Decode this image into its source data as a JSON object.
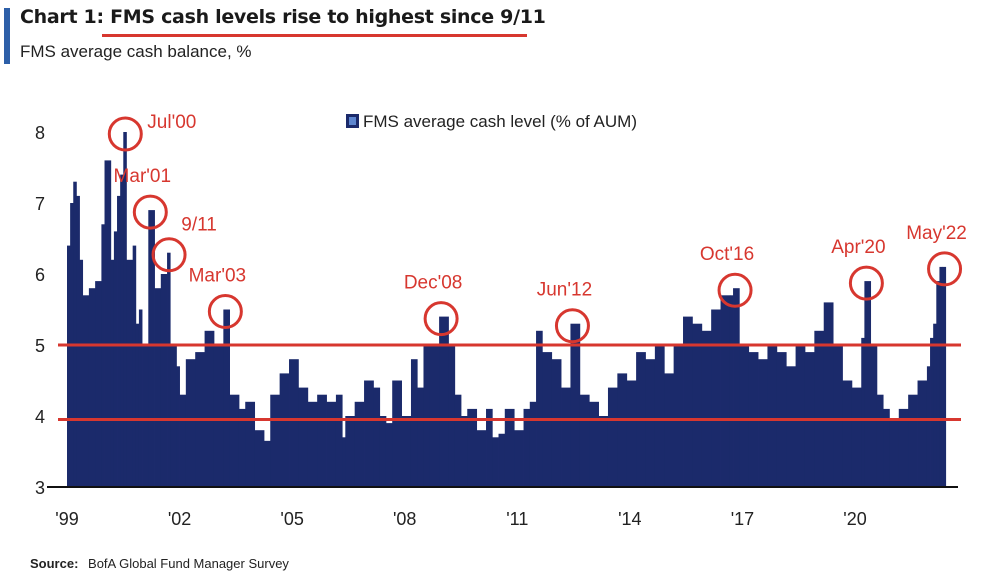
{
  "header": {
    "chart_number": "Chart 1:",
    "title": "FMS cash levels rise to highest since 9/11",
    "subtitle": "FMS average cash balance, %"
  },
  "footer": {
    "source_label": "Source:",
    "source_text": "BofA Global Fund Manager Survey"
  },
  "colors": {
    "bars": "#1b2a6b",
    "annotation": "#d7372f",
    "accent": "#2d5fa8"
  },
  "chart_data": {
    "type": "bar",
    "title": "FMS cash levels rise to highest since 9/11",
    "subtitle": "FMS average cash balance, %",
    "legend": {
      "label": "FMS average cash level (% of AUM)",
      "position": "top-center"
    },
    "ylim": [
      3,
      8.3
    ],
    "yticks": [
      3,
      4,
      5,
      6,
      7,
      8
    ],
    "x_tick_labels": [
      "'99",
      "'02",
      "'05",
      "'08",
      "'11",
      "'14",
      "'17",
      "'20"
    ],
    "x_tick_years": [
      1999,
      2002,
      2005,
      2008,
      2011,
      2014,
      2017,
      2020
    ],
    "x_range": [
      "1999-01",
      "2022-05"
    ],
    "reference_lines": [
      5.0,
      3.95
    ],
    "series": [
      {
        "points": [
          [
            "1999-01",
            6.4
          ],
          [
            "1999-02",
            7.0
          ],
          [
            "1999-03",
            7.3
          ],
          [
            "1999-04",
            7.1
          ],
          [
            "1999-05",
            6.2
          ],
          [
            "1999-06",
            5.7
          ],
          [
            "1999-08",
            5.8
          ],
          [
            "1999-10",
            5.9
          ],
          [
            "1999-12",
            6.7
          ],
          [
            "2000-01",
            7.6
          ],
          [
            "2000-03",
            6.2
          ],
          [
            "2000-04",
            6.6
          ],
          [
            "2000-05",
            7.1
          ],
          [
            "2000-06",
            7.4
          ],
          [
            "2000-07",
            8.0
          ],
          [
            "2000-08",
            6.2
          ],
          [
            "2000-10",
            6.4
          ],
          [
            "2000-11",
            5.3
          ],
          [
            "2000-12",
            5.5
          ],
          [
            "2001-01",
            5.0
          ],
          [
            "2001-03",
            6.9
          ],
          [
            "2001-05",
            5.8
          ],
          [
            "2001-07",
            6.0
          ],
          [
            "2001-09",
            6.3
          ],
          [
            "2001-10",
            5.0
          ],
          [
            "2001-12",
            4.7
          ],
          [
            "2002-01",
            4.3
          ],
          [
            "2002-03",
            4.8
          ],
          [
            "2002-06",
            4.9
          ],
          [
            "2002-09",
            5.2
          ],
          [
            "2002-12",
            5.0
          ],
          [
            "2003-03",
            5.5
          ],
          [
            "2003-05",
            4.3
          ],
          [
            "2003-08",
            4.1
          ],
          [
            "2003-10",
            4.2
          ],
          [
            "2004-01",
            3.8
          ],
          [
            "2004-04",
            3.65
          ],
          [
            "2004-06",
            4.3
          ],
          [
            "2004-09",
            4.6
          ],
          [
            "2004-12",
            4.8
          ],
          [
            "2005-03",
            4.4
          ],
          [
            "2005-06",
            4.2
          ],
          [
            "2005-09",
            4.3
          ],
          [
            "2005-12",
            4.2
          ],
          [
            "2006-03",
            4.3
          ],
          [
            "2006-05",
            3.7
          ],
          [
            "2006-06",
            4.0
          ],
          [
            "2006-09",
            4.2
          ],
          [
            "2006-12",
            4.5
          ],
          [
            "2007-03",
            4.4
          ],
          [
            "2007-05",
            4.0
          ],
          [
            "2007-07",
            3.9
          ],
          [
            "2007-09",
            4.5
          ],
          [
            "2007-12",
            4.0
          ],
          [
            "2008-03",
            4.8
          ],
          [
            "2008-05",
            4.4
          ],
          [
            "2008-07",
            5.0
          ],
          [
            "2008-09",
            5.0
          ],
          [
            "2008-12",
            5.4
          ],
          [
            "2009-03",
            5.0
          ],
          [
            "2009-05",
            4.3
          ],
          [
            "2009-07",
            4.0
          ],
          [
            "2009-09",
            4.1
          ],
          [
            "2009-12",
            3.8
          ],
          [
            "2010-03",
            4.1
          ],
          [
            "2010-05",
            3.7
          ],
          [
            "2010-07",
            3.75
          ],
          [
            "2010-09",
            4.1
          ],
          [
            "2010-12",
            3.8
          ],
          [
            "2011-03",
            4.1
          ],
          [
            "2011-05",
            4.2
          ],
          [
            "2011-07",
            5.2
          ],
          [
            "2011-09",
            4.9
          ],
          [
            "2011-12",
            4.8
          ],
          [
            "2012-03",
            4.4
          ],
          [
            "2012-06",
            5.3
          ],
          [
            "2012-09",
            4.3
          ],
          [
            "2012-12",
            4.2
          ],
          [
            "2013-03",
            4.0
          ],
          [
            "2013-06",
            4.4
          ],
          [
            "2013-09",
            4.6
          ],
          [
            "2013-12",
            4.5
          ],
          [
            "2014-03",
            4.9
          ],
          [
            "2014-06",
            4.8
          ],
          [
            "2014-09",
            5.0
          ],
          [
            "2014-12",
            4.6
          ],
          [
            "2015-03",
            5.0
          ],
          [
            "2015-06",
            5.4
          ],
          [
            "2015-09",
            5.3
          ],
          [
            "2015-12",
            5.2
          ],
          [
            "2016-03",
            5.5
          ],
          [
            "2016-06",
            5.7
          ],
          [
            "2016-09",
            5.7
          ],
          [
            "2016-10",
            5.8
          ],
          [
            "2016-12",
            5.0
          ],
          [
            "2017-03",
            4.9
          ],
          [
            "2017-06",
            4.8
          ],
          [
            "2017-09",
            5.0
          ],
          [
            "2017-12",
            4.9
          ],
          [
            "2018-03",
            4.7
          ],
          [
            "2018-06",
            5.0
          ],
          [
            "2018-09",
            4.9
          ],
          [
            "2018-12",
            5.2
          ],
          [
            "2019-03",
            5.6
          ],
          [
            "2019-06",
            5.0
          ],
          [
            "2019-09",
            4.5
          ],
          [
            "2019-12",
            4.4
          ],
          [
            "2020-03",
            5.1
          ],
          [
            "2020-04",
            5.9
          ],
          [
            "2020-06",
            5.0
          ],
          [
            "2020-08",
            4.3
          ],
          [
            "2020-10",
            4.1
          ],
          [
            "2020-12",
            3.95
          ],
          [
            "2021-03",
            4.1
          ],
          [
            "2021-06",
            4.3
          ],
          [
            "2021-09",
            4.5
          ],
          [
            "2021-12",
            4.7
          ],
          [
            "2022-01",
            5.1
          ],
          [
            "2022-02",
            5.3
          ],
          [
            "2022-03",
            5.9
          ],
          [
            "2022-04",
            6.1
          ],
          [
            "2022-05",
            6.1
          ]
        ]
      }
    ],
    "annotations": [
      {
        "label": "Jul'00",
        "date": "2000-07",
        "value": 8.0,
        "side": "right"
      },
      {
        "label": "Mar'01",
        "date": "2001-03",
        "value": 6.9,
        "side": "above"
      },
      {
        "label": "9/11",
        "date": "2001-09",
        "value": 6.3,
        "side": "above-right"
      },
      {
        "label": "Mar'03",
        "date": "2003-03",
        "value": 5.5,
        "side": "above"
      },
      {
        "label": "Dec'08",
        "date": "2008-12",
        "value": 5.4,
        "side": "above"
      },
      {
        "label": "Jun'12",
        "date": "2012-06",
        "value": 5.3,
        "side": "above"
      },
      {
        "label": "Oct'16",
        "date": "2016-10",
        "value": 5.8,
        "side": "above"
      },
      {
        "label": "Apr'20",
        "date": "2020-04",
        "value": 5.9,
        "side": "above"
      },
      {
        "label": "May'22",
        "date": "2022-05",
        "value": 6.1,
        "side": "above"
      }
    ]
  }
}
